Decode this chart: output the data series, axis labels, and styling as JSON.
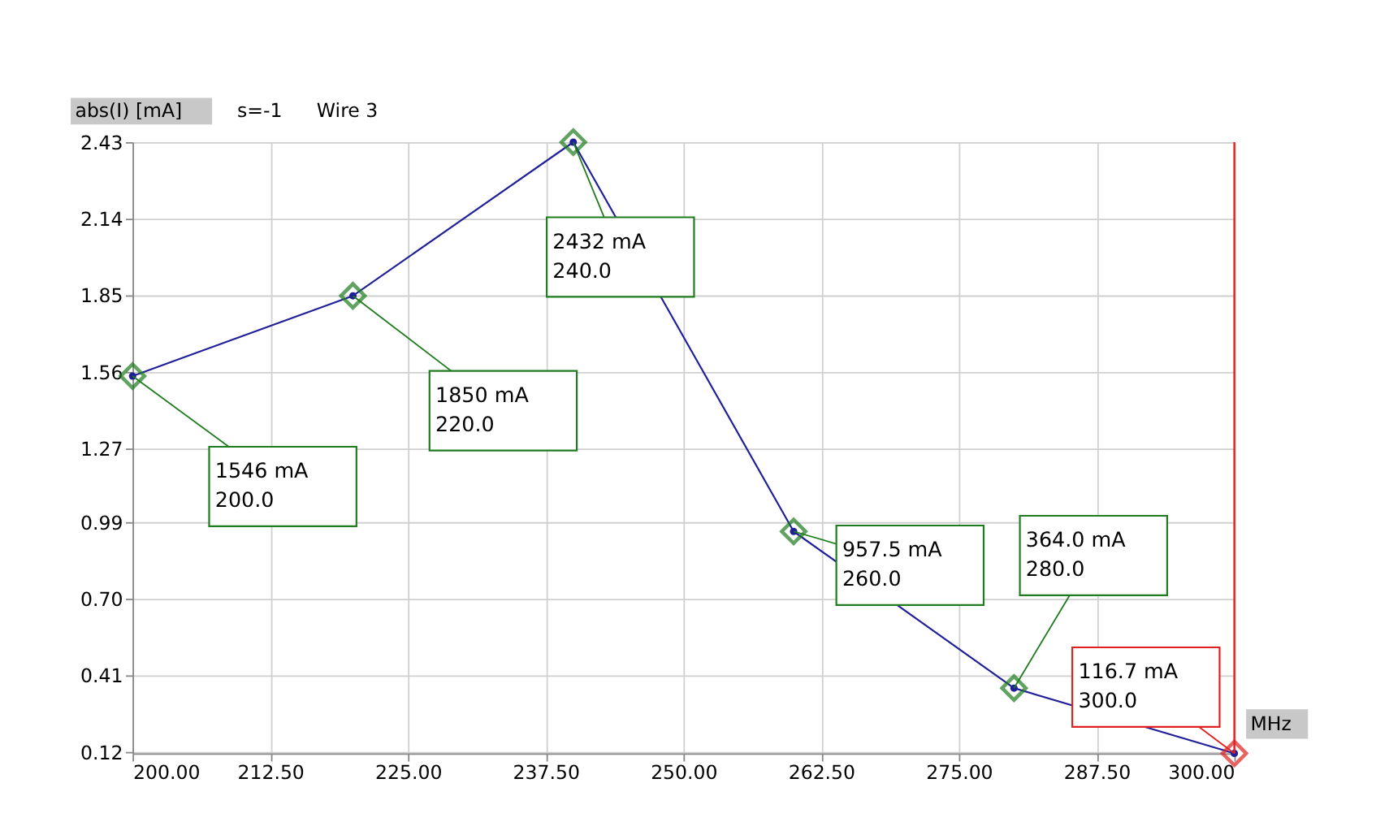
{
  "chart_data": {
    "type": "line",
    "ylabel": "abs(I) [mA]",
    "xlabel": "MHz",
    "annotations": [
      "s=-1",
      "Wire 3",
      {
        "text": "1546 mA\n200.0",
        "x": 200,
        "y": 1.546
      },
      {
        "text": "1850 mA\n220.0",
        "x": 220,
        "y": 1.85
      },
      {
        "text": "2432 mA\n240.0",
        "x": 240,
        "y": 2.432
      },
      {
        "text": "957.5 mA\n260.0",
        "x": 260,
        "y": 0.9575
      },
      {
        "text": "364.0 mA\n280.0",
        "x": 280,
        "y": 0.364
      },
      {
        "text": "116.7 mA\n300.0",
        "x": 300,
        "y": 0.1167
      }
    ],
    "x": [
      200,
      220,
      240,
      260,
      280,
      300
    ],
    "series": [
      {
        "color": "#1f1f9a",
        "values": [
          1.546,
          1.85,
          2.432,
          0.9575,
          0.364,
          0.1167
        ],
        "colors": [
          "#1e7b1e",
          "#1e7b1e",
          "#1e7b1e",
          "#1e7b1e",
          "#1e7b1e",
          "#e02020"
        ]
      }
    ],
    "xlim": [
      200,
      300
    ],
    "xticks": [
      {
        "value": 200,
        "label": "200.00"
      },
      {
        "value": 212.5,
        "label": "212.50"
      },
      {
        "value": 225,
        "label": "225.00"
      },
      {
        "value": 237.5,
        "label": "237.50"
      },
      {
        "value": 250,
        "label": "250.00"
      },
      {
        "value": 262.5,
        "label": "262.50"
      },
      {
        "value": 275,
        "label": "275.00"
      },
      {
        "value": 287.5,
        "label": "287.50"
      },
      {
        "value": 300,
        "label": "300.00"
      }
    ],
    "ylim": [
      0.1167,
      2.432
    ],
    "yticks": [
      0.12,
      0.41,
      {
        "value": 0.7,
        "label": "0.70"
      },
      0.99,
      1.27,
      1.56,
      1.85,
      2.14,
      2.43
    ],
    "ref_lines": [
      {
        "axis": "x",
        "value": 300,
        "color": "#e02020"
      }
    ],
    "grid": true,
    "marker": "diamond",
    "line_style": "solid"
  }
}
